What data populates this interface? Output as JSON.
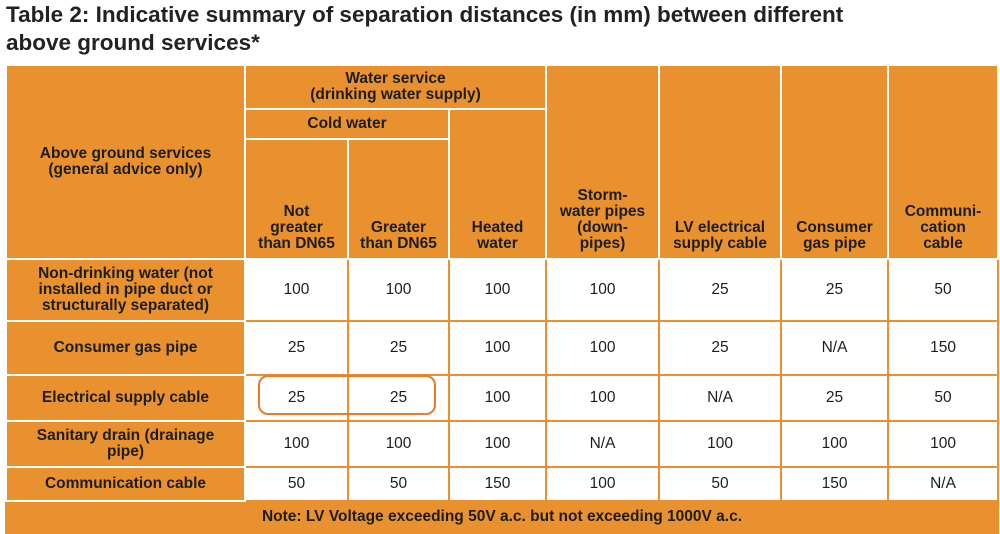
{
  "title": "Table 2: Indicative summary of separation distances (in mm) between different\nabove ground services*",
  "table": {
    "header": {
      "row_label": "Above ground services\n(general advice only)",
      "water_service": "Water service\n(drinking water supply)",
      "cold_water": "Cold water",
      "columns": [
        "Not\ngreater\nthan DN65",
        "Greater\nthan DN65",
        "Heated\nwater",
        "Storm-\nwater pipes\n(down-\npipes)",
        "LV electrical\nsupply cable",
        "Consumer\ngas pipe",
        "Communi-\ncation\ncable"
      ]
    },
    "rows": [
      {
        "label": "Non-drinking water (not\ninstalled in pipe duct or\nstructurally separated)",
        "values": [
          100,
          100,
          100,
          100,
          25,
          25,
          50
        ]
      },
      {
        "label": "Consumer gas pipe",
        "values": [
          25,
          25,
          100,
          100,
          25,
          "N/A",
          150
        ]
      },
      {
        "label": "Electrical supply cable",
        "values": [
          25,
          25,
          100,
          100,
          "N/A",
          25,
          50
        ]
      },
      {
        "label": "Sanitary drain (drainage\npipe)",
        "values": [
          100,
          100,
          100,
          "N/A",
          100,
          100,
          100
        ]
      },
      {
        "label": "Communication cable",
        "values": [
          50,
          50,
          150,
          100,
          50,
          150,
          "N/A"
        ]
      }
    ],
    "note": "Note: LV Voltage exceeding 50V a.c. but not exceeding 1000V a.c."
  }
}
